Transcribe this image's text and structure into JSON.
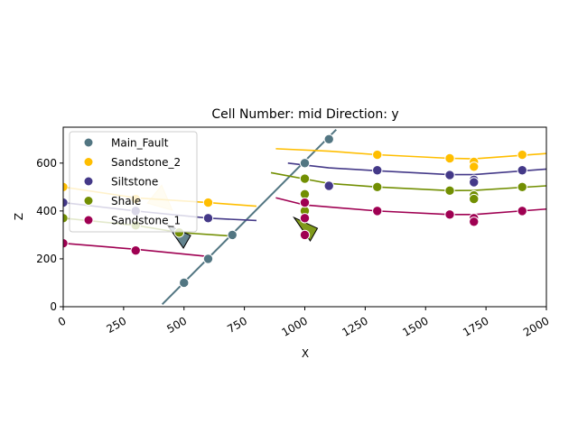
{
  "chart_data": {
    "type": "scatter",
    "title": "Cell Number: mid Direction: y",
    "xlabel": "X",
    "ylabel": "Z",
    "xlim": [
      0,
      2000
    ],
    "ylim": [
      0,
      750
    ],
    "xticks": [
      0,
      250,
      500,
      750,
      1000,
      1250,
      1500,
      1750,
      2000
    ],
    "yticks": [
      0,
      200,
      400,
      600
    ],
    "legend_position": "top-left",
    "series": [
      {
        "name": "Main_Fault",
        "color": "#527682",
        "points": [
          [
            500,
            100
          ],
          [
            600,
            200
          ],
          [
            700,
            300
          ],
          [
            1000,
            600
          ],
          [
            1100,
            700
          ]
        ],
        "line": [
          [
            410,
            10
          ],
          [
            1130,
            740
          ]
        ],
        "orientations": [
          [
            475,
            290,
            "down"
          ]
        ]
      },
      {
        "name": "Sandstone_2",
        "color": "#ffbe00",
        "points": [
          [
            0,
            500
          ],
          [
            300,
            450
          ],
          [
            600,
            435
          ],
          [
            1300,
            635
          ],
          [
            1600,
            620
          ],
          [
            1700,
            605
          ],
          [
            1700,
            585
          ],
          [
            1900,
            635
          ]
        ],
        "lines": [
          [
            [
              0,
              500
            ],
            [
              300,
              455
            ],
            [
              600,
              435
            ],
            [
              800,
              420
            ]
          ],
          [
            [
              880,
              660
            ],
            [
              1100,
              650
            ],
            [
              1300,
              635
            ],
            [
              1600,
              620
            ],
            [
              1700,
              618
            ],
            [
              2000,
              640
            ]
          ]
        ],
        "orientations": [
          [
            400,
            440,
            "up"
          ]
        ]
      },
      {
        "name": "Siltstone",
        "color": "#443988",
        "points": [
          [
            0,
            435
          ],
          [
            300,
            400
          ],
          [
            600,
            370
          ],
          [
            1100,
            505
          ],
          [
            1300,
            570
          ],
          [
            1600,
            550
          ],
          [
            1700,
            530
          ],
          [
            1700,
            520
          ],
          [
            1900,
            570
          ]
        ],
        "lines": [
          [
            [
              0,
              435
            ],
            [
              300,
              400
            ],
            [
              600,
              370
            ],
            [
              800,
              360
            ]
          ],
          [
            [
              930,
              600
            ],
            [
              1100,
              580
            ],
            [
              1300,
              568
            ],
            [
              1600,
              552
            ],
            [
              1700,
              552
            ],
            [
              2000,
              575
            ]
          ]
        ]
      },
      {
        "name": "Shale",
        "color": "#728f02",
        "points": [
          [
            0,
            370
          ],
          [
            300,
            340
          ],
          [
            480,
            310
          ],
          [
            1000,
            535
          ],
          [
            1000,
            470
          ],
          [
            1000,
            400
          ],
          [
            1300,
            500
          ],
          [
            1600,
            485
          ],
          [
            1700,
            465
          ],
          [
            1700,
            450
          ],
          [
            1900,
            500
          ]
        ],
        "lines": [
          [
            [
              0,
              370
            ],
            [
              300,
              340
            ],
            [
              480,
              310
            ],
            [
              700,
              295
            ]
          ],
          [
            [
              860,
              560
            ],
            [
              1100,
              515
            ],
            [
              1300,
              500
            ],
            [
              1600,
              485
            ],
            [
              1700,
              486
            ],
            [
              2000,
              505
            ]
          ]
        ],
        "orientations": [
          [
            1000,
            320,
            "down"
          ]
        ]
      },
      {
        "name": "Sandstone_1",
        "color": "#9f0052",
        "points": [
          [
            0,
            265
          ],
          [
            300,
            235
          ],
          [
            1000,
            435
          ],
          [
            1000,
            370
          ],
          [
            1000,
            300
          ],
          [
            1300,
            400
          ],
          [
            1600,
            385
          ],
          [
            1700,
            370
          ],
          [
            1700,
            355
          ],
          [
            1900,
            400
          ]
        ],
        "lines": [
          [
            [
              0,
              265
            ],
            [
              300,
              240
            ],
            [
              600,
              210
            ]
          ],
          [
            [
              880,
              455
            ],
            [
              1000,
              425
            ],
            [
              1300,
              400
            ],
            [
              1600,
              385
            ],
            [
              1700,
              385
            ],
            [
              2000,
              408
            ]
          ]
        ]
      }
    ]
  }
}
